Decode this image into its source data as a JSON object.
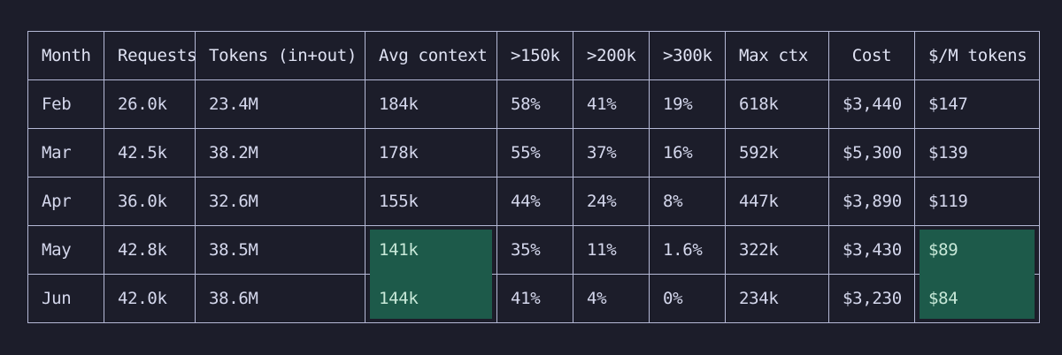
{
  "table": {
    "headers": [
      "Month",
      "Requests",
      "Tokens (in+out)",
      "Avg context",
      ">150k",
      ">200k",
      ">300k",
      "Max ctx",
      "Cost",
      "$/M tokens"
    ],
    "rows": [
      [
        "Feb",
        "26.0k",
        "23.4M",
        "184k",
        "58%",
        "41%",
        "19%",
        "618k",
        "$3,440",
        "$147"
      ],
      [
        "Mar",
        "42.5k",
        "38.2M",
        "178k",
        "55%",
        "37%",
        "16%",
        "592k",
        "$5,300",
        "$139"
      ],
      [
        "Apr",
        "36.0k",
        "32.6M",
        "155k",
        "44%",
        "24%",
        "8%",
        "447k",
        "$3,890",
        "$119"
      ],
      [
        "May",
        "42.8k",
        "38.5M",
        "141k",
        "35%",
        "11%",
        "1.6%",
        "322k",
        "$3,430",
        "$89"
      ],
      [
        "Jun",
        "42.0k",
        "38.6M",
        "144k",
        "41%",
        "4%",
        "0%",
        "234k",
        "$3,230",
        "$84"
      ]
    ],
    "highlighted_columns": [
      "Avg context",
      "$/M tokens"
    ],
    "highlighted_rows": [
      "May",
      "Jun"
    ]
  },
  "colors": {
    "background": "#1c1d2a",
    "grid": "#b5b9d6",
    "text": "#d4d7ec",
    "highlight": "#1d5a4a"
  }
}
